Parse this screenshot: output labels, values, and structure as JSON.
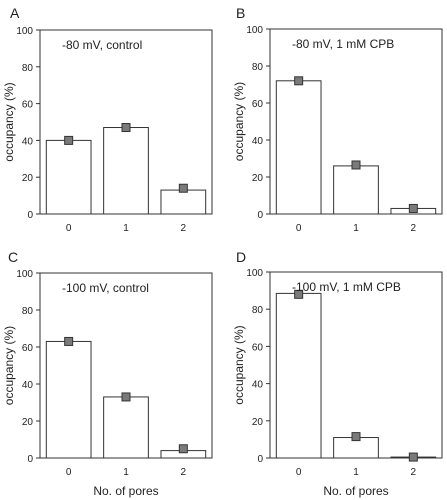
{
  "chart_data": [
    {
      "panel_label": "A",
      "type": "bar",
      "annotation": "-80 mV, control",
      "ylabel": "occupancy (%)",
      "xlabel": "",
      "ylim": [
        0,
        100
      ],
      "yticks": [
        "0",
        "20",
        "40",
        "60",
        "80",
        "100"
      ],
      "categories": [
        "0",
        "1",
        "2"
      ],
      "series": [
        {
          "values": [
            40,
            47,
            13
          ]
        },
        {
          "values": [
            40,
            47,
            14
          ]
        }
      ]
    },
    {
      "panel_label": "B",
      "type": "bar",
      "annotation": "-80 mV, 1 mM CPB",
      "ylabel": "occupancy (%)",
      "xlabel": "",
      "ylim": [
        0,
        100
      ],
      "yticks": [
        "0",
        "20",
        "40",
        "60",
        "80",
        "100"
      ],
      "categories": [
        "0",
        "1",
        "2"
      ],
      "series": [
        {
          "values": [
            72,
            26,
            3
          ]
        },
        {
          "values": [
            72,
            26.5,
            3
          ]
        }
      ]
    },
    {
      "panel_label": "C",
      "type": "bar",
      "annotation": "-100 mV, control",
      "ylabel": "occupancy (%)",
      "xlabel": "No. of pores",
      "ylim": [
        0,
        100
      ],
      "yticks": [
        "0",
        "20",
        "40",
        "60",
        "80",
        "100"
      ],
      "categories": [
        "0",
        "1",
        "2"
      ],
      "series": [
        {
          "values": [
            63,
            33,
            4
          ]
        },
        {
          "values": [
            63,
            33,
            5
          ]
        }
      ]
    },
    {
      "panel_label": "D",
      "type": "bar",
      "annotation": "-100 mV, 1 mM CPB",
      "ylabel": "occupancy (%)",
      "xlabel": "No. of pores",
      "ylim": [
        0,
        100
      ],
      "yticks": [
        "0",
        "20",
        "40",
        "60",
        "80",
        "100"
      ],
      "categories": [
        "0",
        "1",
        "2"
      ],
      "series": [
        {
          "values": [
            88.5,
            11,
            0.5
          ]
        },
        {
          "values": [
            88,
            11.5,
            0.5
          ]
        }
      ]
    }
  ]
}
